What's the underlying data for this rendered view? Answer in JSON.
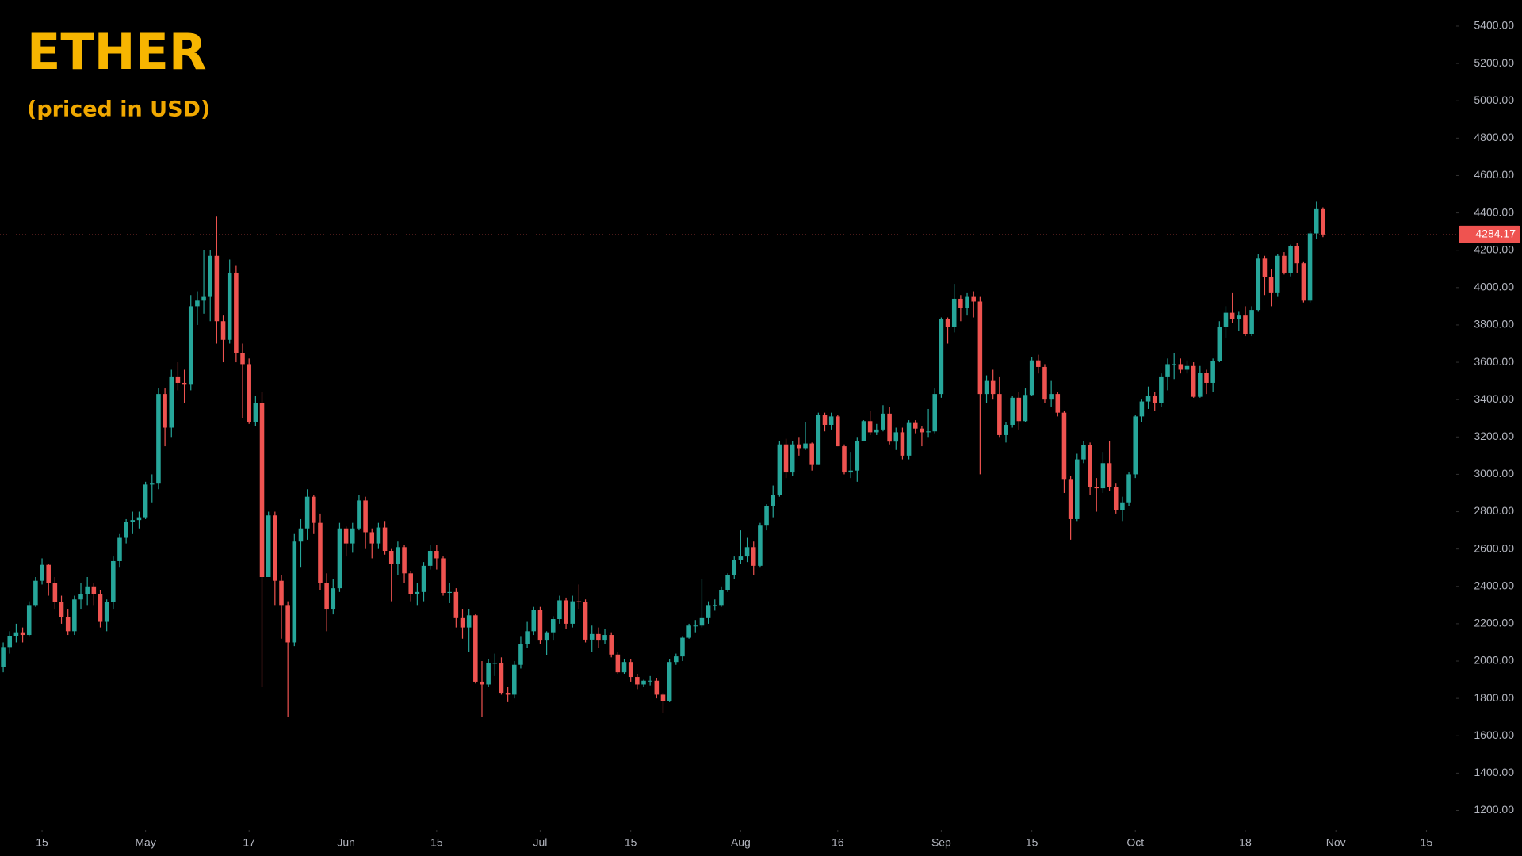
{
  "chart_data": {
    "type": "candlestick",
    "title": "ETHER",
    "subtitle": "(priced in USD)",
    "up_color": "#26a69a",
    "down_color": "#ef5350",
    "xlim": [
      98.5,
      323.6
    ],
    "ylim": [
      1096,
      5540
    ],
    "xticks": [
      {
        "value": 105,
        "label": "15"
      },
      {
        "value": 121,
        "label": "May"
      },
      {
        "value": 137,
        "label": "17"
      },
      {
        "value": 152,
        "label": "Jun"
      },
      {
        "value": 166,
        "label": "15"
      },
      {
        "value": 182,
        "label": "Jul"
      },
      {
        "value": 196,
        "label": "15"
      },
      {
        "value": 213,
        "label": "Aug"
      },
      {
        "value": 228,
        "label": "16"
      },
      {
        "value": 244,
        "label": "Sep"
      },
      {
        "value": 258,
        "label": "15"
      },
      {
        "value": 274,
        "label": "Oct"
      },
      {
        "value": 291,
        "label": "18"
      },
      {
        "value": 305,
        "label": "Nov"
      },
      {
        "value": 319,
        "label": "15"
      }
    ],
    "yticks": [
      {
        "value": 1200,
        "label": "1200.00"
      },
      {
        "value": 1400,
        "label": "1400.00"
      },
      {
        "value": 1600,
        "label": "1600.00"
      },
      {
        "value": 1800,
        "label": "1800.00"
      },
      {
        "value": 2000,
        "label": "2000.00"
      },
      {
        "value": 2200,
        "label": "2200.00"
      },
      {
        "value": 2400,
        "label": "2400.00"
      },
      {
        "value": 2600,
        "label": "2600.00"
      },
      {
        "value": 2800,
        "label": "2800.00"
      },
      {
        "value": 3000,
        "label": "3000.00"
      },
      {
        "value": 3200,
        "label": "3200.00"
      },
      {
        "value": 3400,
        "label": "3400.00"
      },
      {
        "value": 3600,
        "label": "3600.00"
      },
      {
        "value": 3800,
        "label": "3800.00"
      },
      {
        "value": 4000,
        "label": "4000.00"
      },
      {
        "value": 4200,
        "label": "4200.00"
      },
      {
        "value": 4400,
        "label": "4400.00"
      },
      {
        "value": 4600,
        "label": "4600.00"
      },
      {
        "value": 4800,
        "label": "4800.00"
      },
      {
        "value": 5000,
        "label": "5000.00"
      },
      {
        "value": 5200,
        "label": "5200.00"
      },
      {
        "value": 5400,
        "label": "5400.00"
      }
    ],
    "last_price": 4284.17,
    "x": [
      99,
      100,
      101,
      102,
      103,
      104,
      105,
      106,
      107,
      108,
      109,
      110,
      111,
      112,
      113,
      114,
      115,
      116,
      117,
      118,
      119,
      120,
      121,
      122,
      123,
      124,
      125,
      126,
      127,
      128,
      129,
      130,
      131,
      132,
      133,
      134,
      135,
      136,
      137,
      138,
      139,
      140,
      141,
      142,
      143,
      144,
      145,
      146,
      147,
      148,
      149,
      150,
      151,
      152,
      153,
      154,
      155,
      156,
      157,
      158,
      159,
      160,
      161,
      162,
      163,
      164,
      165,
      166,
      167,
      168,
      169,
      170,
      171,
      172,
      173,
      174,
      175,
      176,
      177,
      178,
      179,
      180,
      181,
      182,
      183,
      184,
      185,
      186,
      187,
      188,
      189,
      190,
      191,
      192,
      193,
      194,
      195,
      196,
      197,
      198,
      199,
      200,
      201,
      202,
      203,
      204,
      205,
      206,
      207,
      208,
      209,
      210,
      211,
      212,
      213,
      214,
      215,
      216,
      217,
      218,
      219,
      220,
      221,
      222,
      223,
      224,
      225,
      226,
      227,
      228,
      229,
      230,
      231,
      232,
      233,
      234,
      235,
      236,
      237,
      238,
      239,
      240,
      241,
      242,
      243,
      244,
      245,
      246,
      247,
      248,
      249,
      250,
      251,
      252,
      253,
      254,
      255,
      256,
      257,
      258,
      259,
      260,
      261,
      262,
      263,
      264,
      265,
      266,
      267,
      268,
      269,
      270,
      271,
      272,
      273,
      274,
      275,
      276,
      277,
      278,
      279,
      280,
      281,
      282,
      283,
      284,
      285,
      286,
      287,
      288,
      289,
      290,
      291,
      292,
      293,
      294,
      295,
      296,
      297,
      298,
      299,
      300,
      301,
      302,
      303
    ],
    "open": [
      1970,
      2075,
      2135,
      2150,
      2140,
      2300,
      2430,
      2515,
      2420,
      2315,
      2235,
      2160,
      2330,
      2360,
      2400,
      2360,
      2210,
      2315,
      2535,
      2660,
      2745,
      2755,
      2770,
      2945,
      2950,
      3430,
      3250,
      3520,
      3490,
      3480,
      3900,
      3930,
      3950,
      4170,
      3820,
      3720,
      4080,
      3650,
      3590,
      3280,
      3380,
      2450,
      2780,
      2430,
      2300,
      2100,
      2640,
      2710,
      2880,
      2740,
      2420,
      2280,
      2390,
      2710,
      2630,
      2710,
      2860,
      2690,
      2630,
      2715,
      2590,
      2520,
      2610,
      2470,
      2360,
      2370,
      2510,
      2590,
      2550,
      2365,
      2370,
      2230,
      2180,
      2245,
      1890,
      1875,
      1990,
      1990,
      1830,
      1820,
      1980,
      2090,
      2160,
      2275,
      2110,
      2150,
      2225,
      2325,
      2200,
      2320,
      2315,
      2115,
      2145,
      2110,
      2140,
      2035,
      1940,
      1995,
      1915,
      1875,
      1895,
      1895,
      1820,
      1785,
      1995,
      2025,
      2125,
      2190,
      2190,
      2230,
      2300,
      2300,
      2380,
      2460,
      2540,
      2560,
      2610,
      2510,
      2725,
      2830,
      2890,
      3160,
      3010,
      3160,
      3140,
      3165,
      3050,
      3320,
      3265,
      3310,
      3150,
      3010,
      3020,
      3180,
      3285,
      3225,
      3240,
      3325,
      3175,
      3225,
      3100,
      3275,
      3245,
      3225,
      3230,
      3430,
      3830,
      3790,
      3940,
      3890,
      3950,
      3925,
      3430,
      3500,
      3430,
      3210,
      3265,
      3410,
      3285,
      3425,
      3610,
      3575,
      3400,
      3430,
      3330,
      2975,
      2760,
      3080,
      3155,
      2930,
      2925,
      3060,
      2930,
      2810,
      2850,
      3000,
      3310,
      3390,
      3420,
      3380,
      3520,
      3590,
      3590,
      3560,
      3580,
      3415,
      3545,
      3490,
      3605,
      3790,
      3865,
      3830,
      3850,
      3750,
      3880,
      4155,
      4055,
      3970,
      4170,
      4080,
      4220,
      4130,
      3930,
      4290,
      4420
    ],
    "high": [
      2100,
      2160,
      2200,
      2180,
      2320,
      2450,
      2550,
      2520,
      2450,
      2350,
      2280,
      2350,
      2420,
      2450,
      2420,
      2380,
      2330,
      2560,
      2680,
      2760,
      2800,
      2800,
      2960,
      3000,
      3460,
      3460,
      3560,
      3600,
      3560,
      3960,
      3980,
      4200,
      4200,
      4380,
      3850,
      4150,
      4120,
      3700,
      3620,
      3420,
      3440,
      2800,
      2800,
      2460,
      2320,
      2680,
      2760,
      2920,
      2890,
      2790,
      2470,
      2440,
      2740,
      2720,
      2740,
      2890,
      2880,
      2710,
      2740,
      2750,
      2600,
      2640,
      2620,
      2480,
      2420,
      2530,
      2620,
      2620,
      2560,
      2420,
      2390,
      2280,
      2280,
      2250,
      2000,
      2010,
      2040,
      2020,
      1860,
      2000,
      2130,
      2210,
      2290,
      2290,
      2160,
      2240,
      2350,
      2340,
      2350,
      2410,
      2330,
      2190,
      2180,
      2170,
      2150,
      2050,
      2010,
      2010,
      1930,
      1900,
      1920,
      1910,
      1830,
      2010,
      2040,
      2130,
      2200,
      2220,
      2440,
      2320,
      2330,
      2400,
      2470,
      2560,
      2700,
      2660,
      2640,
      2740,
      2840,
      2940,
      3180,
      3190,
      3180,
      3200,
      3280,
      3170,
      3330,
      3330,
      3330,
      3320,
      3160,
      3120,
      3200,
      3290,
      3340,
      3270,
      3370,
      3360,
      3250,
      3250,
      3290,
      3290,
      3260,
      3350,
      3460,
      3840,
      3840,
      4020,
      3960,
      3970,
      3980,
      3950,
      3530,
      3560,
      3520,
      3280,
      3420,
      3440,
      3460,
      3630,
      3640,
      3590,
      3500,
      3440,
      3340,
      2990,
      3110,
      3180,
      3170,
      2980,
      3120,
      3180,
      2950,
      2880,
      3010,
      3320,
      3400,
      3470,
      3440,
      3540,
      3620,
      3650,
      3620,
      3610,
      3600,
      3580,
      3560,
      3620,
      3820,
      3900,
      3970,
      3870,
      3900,
      3900,
      4180,
      4170,
      4100,
      4180,
      4190,
      4230,
      4240,
      4140,
      4300,
      4460,
      4430
    ],
    "low": [
      1940,
      2040,
      2100,
      2100,
      2130,
      2290,
      2410,
      2350,
      2280,
      2200,
      2140,
      2140,
      2280,
      2300,
      2300,
      2180,
      2160,
      2280,
      2500,
      2630,
      2680,
      2710,
      2760,
      2850,
      2920,
      3150,
      3200,
      3450,
      3380,
      3450,
      3800,
      3860,
      3820,
      3700,
      3600,
      3700,
      3600,
      3300,
      3270,
      3260,
      1860,
      2450,
      2300,
      2120,
      1700,
      2080,
      2500,
      2650,
      2680,
      2380,
      2160,
      2250,
      2370,
      2560,
      2580,
      2700,
      2600,
      2550,
      2600,
      2570,
      2320,
      2460,
      2420,
      2320,
      2300,
      2320,
      2490,
      2490,
      2350,
      2310,
      2180,
      2120,
      2050,
      1880,
      1700,
      1860,
      1920,
      1820,
      1780,
      1800,
      1960,
      2070,
      2140,
      2090,
      2030,
      2110,
      2200,
      2170,
      2180,
      2280,
      2100,
      2050,
      2070,
      2090,
      2020,
      1930,
      1930,
      1890,
      1850,
      1860,
      1870,
      1800,
      1720,
      1780,
      1980,
      2000,
      2120,
      2150,
      2180,
      2200,
      2270,
      2290,
      2370,
      2440,
      2520,
      2530,
      2460,
      2500,
      2700,
      2770,
      2880,
      2980,
      2990,
      3100,
      3130,
      3020,
      3050,
      3230,
      3240,
      3150,
      3000,
      2980,
      2960,
      3180,
      3210,
      3210,
      3230,
      3160,
      3130,
      3080,
      3080,
      3220,
      3150,
      3200,
      3220,
      3410,
      3700,
      3760,
      3820,
      3850,
      3840,
      3000,
      3380,
      3400,
      3200,
      3170,
      3250,
      3240,
      3280,
      3420,
      3540,
      3380,
      3360,
      3310,
      2900,
      2650,
      2750,
      3060,
      2890,
      2800,
      2900,
      2910,
      2790,
      2750,
      2830,
      2980,
      3280,
      3350,
      3340,
      3360,
      3450,
      3510,
      3540,
      3540,
      3410,
      3410,
      3430,
      3440,
      3600,
      3730,
      3810,
      3770,
      3740,
      3740,
      3870,
      3960,
      3900,
      3950,
      4070,
      4060,
      4080,
      3920,
      3920,
      4260,
      4270
    ],
    "close": [
      2075,
      2135,
      2150,
      2140,
      2300,
      2430,
      2515,
      2420,
      2315,
      2235,
      2160,
      2330,
      2360,
      2400,
      2360,
      2210,
      2315,
      2535,
      2660,
      2745,
      2755,
      2770,
      2945,
      2950,
      3430,
      3250,
      3520,
      3490,
      3480,
      3900,
      3930,
      3950,
      4170,
      3820,
      3720,
      4080,
      3650,
      3590,
      3280,
      3380,
      2450,
      2780,
      2430,
      2300,
      2100,
      2640,
      2710,
      2880,
      2740,
      2420,
      2280,
      2390,
      2710,
      2630,
      2710,
      2860,
      2690,
      2630,
      2715,
      2590,
      2520,
      2610,
      2470,
      2360,
      2370,
      2510,
      2590,
      2550,
      2365,
      2370,
      2230,
      2180,
      2245,
      1890,
      1875,
      1990,
      1990,
      1830,
      1820,
      1980,
      2090,
      2160,
      2275,
      2110,
      2150,
      2225,
      2325,
      2200,
      2320,
      2315,
      2115,
      2145,
      2110,
      2140,
      2035,
      1940,
      1995,
      1915,
      1875,
      1895,
      1895,
      1820,
      1785,
      1995,
      2025,
      2125,
      2190,
      2190,
      2230,
      2300,
      2300,
      2380,
      2460,
      2540,
      2560,
      2610,
      2510,
      2725,
      2830,
      2890,
      3160,
      3010,
      3160,
      3140,
      3165,
      3050,
      3320,
      3265,
      3310,
      3150,
      3010,
      3020,
      3180,
      3285,
      3225,
      3240,
      3325,
      3175,
      3225,
      3100,
      3275,
      3245,
      3225,
      3230,
      3430,
      3830,
      3790,
      3940,
      3890,
      3950,
      3925,
      3430,
      3500,
      3430,
      3210,
      3265,
      3410,
      3285,
      3425,
      3610,
      3575,
      3400,
      3430,
      3330,
      2975,
      2760,
      3080,
      3155,
      2930,
      2925,
      3060,
      2930,
      2810,
      2850,
      3000,
      3310,
      3390,
      3420,
      3380,
      3520,
      3590,
      3590,
      3560,
      3580,
      3415,
      3545,
      3490,
      3605,
      3790,
      3865,
      3830,
      3850,
      3750,
      3880,
      4155,
      4055,
      3970,
      4170,
      4080,
      4220,
      4130,
      3930,
      4290,
      4420,
      4284.17
    ]
  }
}
